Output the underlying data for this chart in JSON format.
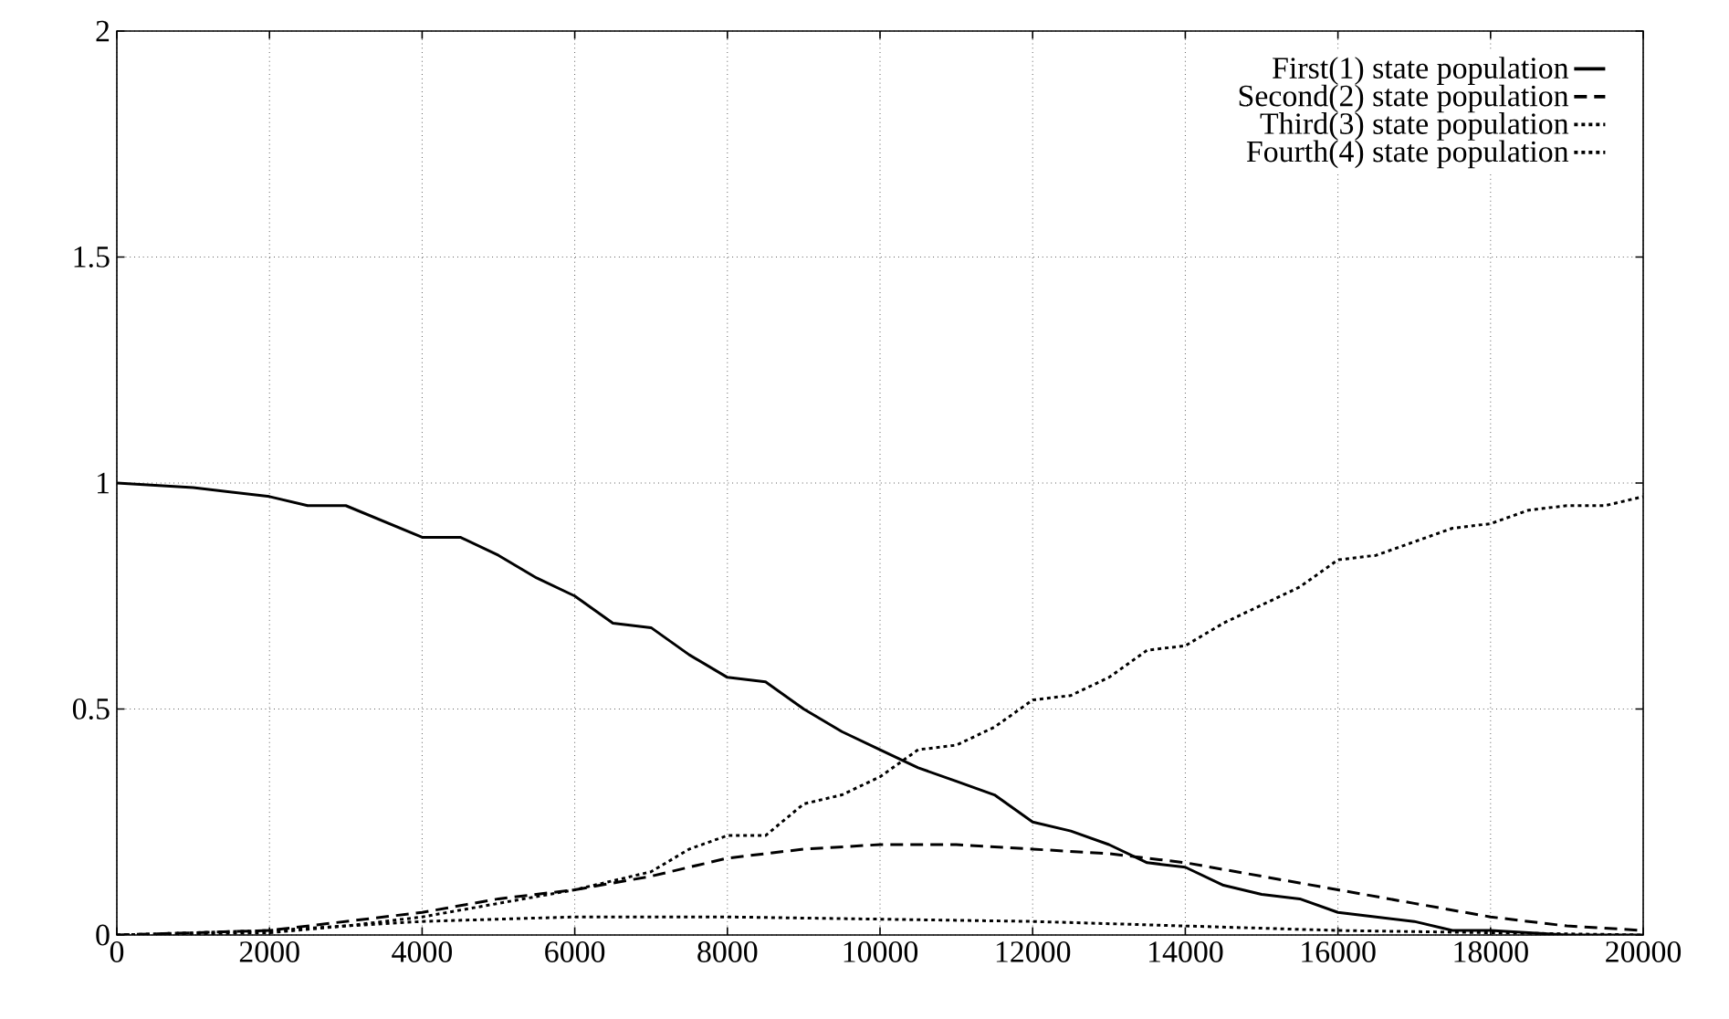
{
  "chart_data": {
    "type": "line",
    "xlim": [
      0,
      20000
    ],
    "ylim": [
      0,
      2
    ],
    "xticks": [
      0,
      2000,
      4000,
      6000,
      8000,
      10000,
      12000,
      14000,
      16000,
      18000,
      20000
    ],
    "yticks": [
      0,
      0.5,
      1,
      1.5,
      2
    ],
    "grid": true,
    "legend": "top right",
    "marker": "none",
    "series": [
      {
        "name": "First(1) state population",
        "color": "#000000",
        "line_style": "solid",
        "x": [
          0,
          1000,
          2000,
          2500,
          3000,
          4000,
          4500,
          5000,
          5500,
          6000,
          6500,
          7000,
          7500,
          8000,
          8500,
          9000,
          9500,
          10000,
          10500,
          11000,
          11500,
          12000,
          12500,
          13000,
          13500,
          14000,
          14500,
          15000,
          15500,
          16000,
          16500,
          17000,
          17500,
          18000,
          19000,
          20000
        ],
        "values": [
          1.0,
          0.99,
          0.97,
          0.95,
          0.95,
          0.88,
          0.88,
          0.84,
          0.79,
          0.75,
          0.69,
          0.68,
          0.62,
          0.57,
          0.56,
          0.5,
          0.45,
          0.41,
          0.37,
          0.34,
          0.31,
          0.25,
          0.23,
          0.2,
          0.16,
          0.15,
          0.11,
          0.09,
          0.08,
          0.05,
          0.04,
          0.03,
          0.01,
          0.01,
          0.0,
          0.0
        ]
      },
      {
        "name": "Second(2) state population",
        "color": "#000000",
        "line_style": "dashed",
        "x": [
          0,
          2000,
          3000,
          4000,
          5000,
          6000,
          7000,
          8000,
          9000,
          10000,
          11000,
          12000,
          13000,
          14000,
          15000,
          16000,
          17000,
          18000,
          19000,
          20000
        ],
        "values": [
          0,
          0.01,
          0.03,
          0.05,
          0.08,
          0.1,
          0.13,
          0.17,
          0.19,
          0.2,
          0.2,
          0.19,
          0.18,
          0.16,
          0.13,
          0.1,
          0.07,
          0.04,
          0.02,
          0.01
        ]
      },
      {
        "name": "Third(3) state population",
        "color": "#000000",
        "line_style": "dotted",
        "x": [
          0,
          2000,
          4000,
          6000,
          8000,
          10000,
          12000,
          14000,
          16000,
          18000,
          20000
        ],
        "values": [
          0,
          0.01,
          0.03,
          0.04,
          0.04,
          0.035,
          0.03,
          0.02,
          0.01,
          0.005,
          0
        ]
      },
      {
        "name": "Fourth(4) state population",
        "color": "#000000",
        "line_style": "dotted",
        "x": [
          0,
          2000,
          3000,
          4000,
          5000,
          6000,
          7000,
          7500,
          8000,
          8500,
          9000,
          9500,
          10000,
          10500,
          11000,
          11500,
          12000,
          12500,
          13000,
          13500,
          14000,
          14500,
          15000,
          15500,
          16000,
          16500,
          17000,
          17500,
          18000,
          18500,
          19000,
          19500,
          20000
        ],
        "values": [
          0,
          0.005,
          0.02,
          0.04,
          0.07,
          0.1,
          0.14,
          0.19,
          0.22,
          0.22,
          0.29,
          0.31,
          0.35,
          0.41,
          0.42,
          0.46,
          0.52,
          0.53,
          0.57,
          0.63,
          0.64,
          0.69,
          0.73,
          0.77,
          0.83,
          0.84,
          0.87,
          0.9,
          0.91,
          0.94,
          0.95,
          0.95,
          0.97
        ]
      }
    ]
  }
}
